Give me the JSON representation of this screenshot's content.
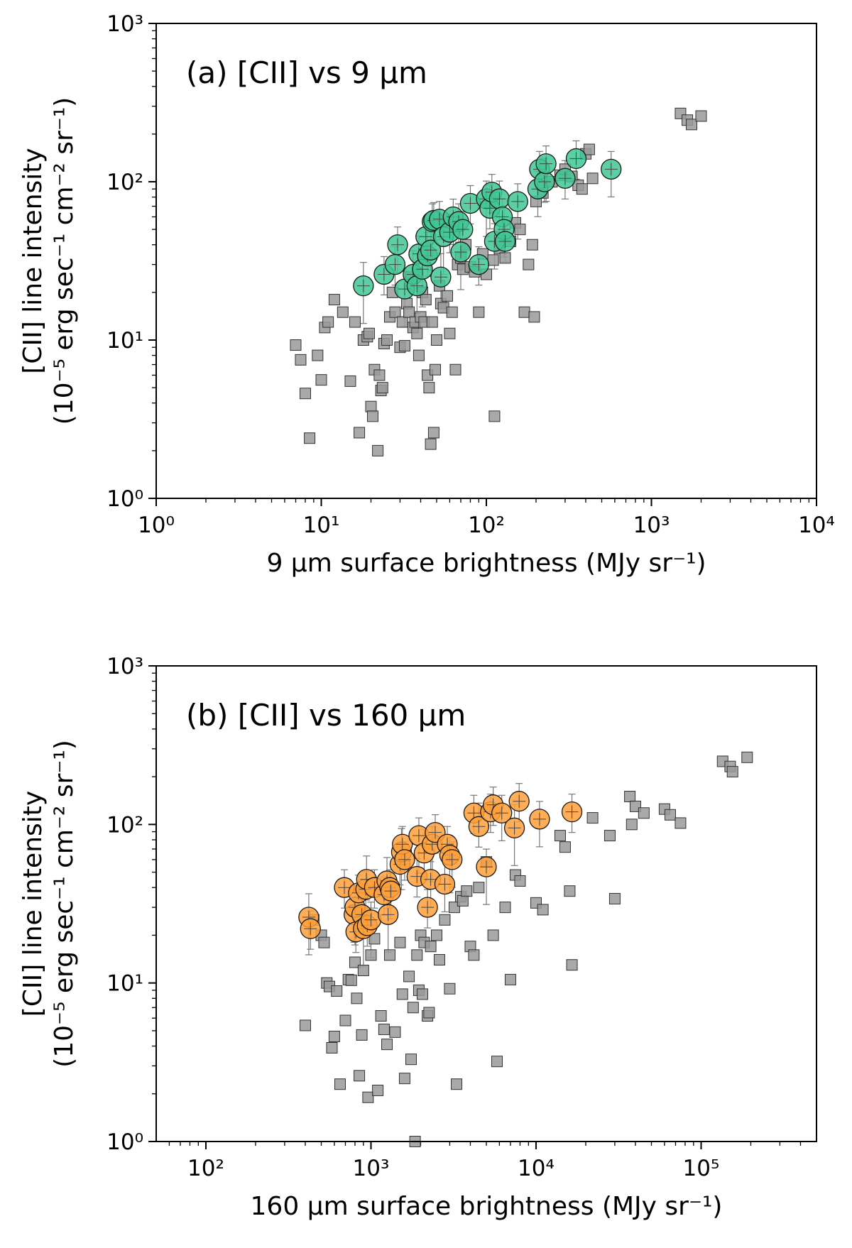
{
  "chart_data": [
    {
      "type": "scatter",
      "title": "(a) [CII] vs 9 μm",
      "xlabel": "9 μm surface brightness (MJy sr⁻¹)",
      "ylabel_line1": "[CII] line intensity",
      "ylabel_line2": "(10⁻⁵ erg sec⁻¹ cm⁻² sr⁻¹)",
      "xscale": "log",
      "yscale": "log",
      "xlim": [
        1,
        10000
      ],
      "ylim": [
        1,
        1000
      ],
      "xticks": [
        {
          "value": 1,
          "label": "10⁰"
        },
        {
          "value": 10,
          "label": "10¹"
        },
        {
          "value": 100,
          "label": "10²"
        },
        {
          "value": 1000,
          "label": "10³"
        },
        {
          "value": 10000,
          "label": "10⁴"
        }
      ],
      "yticks": [
        {
          "value": 1,
          "label": "10⁰"
        },
        {
          "value": 10,
          "label": "10¹"
        },
        {
          "value": 100,
          "label": "10²"
        },
        {
          "value": 1000,
          "label": "10³"
        }
      ],
      "series": [
        {
          "name": "gray squares",
          "marker": "square",
          "color": "#9a9a9a",
          "points": [
            [
              7,
              9.3
            ],
            [
              7.5,
              7.5
            ],
            [
              8,
              4.6
            ],
            [
              8.5,
              2.4
            ],
            [
              9.5,
              8
            ],
            [
              10,
              5.6
            ],
            [
              10.5,
              12
            ],
            [
              11,
              13
            ],
            [
              12,
              18
            ],
            [
              13.5,
              15
            ],
            [
              15,
              5.5
            ],
            [
              16,
              13
            ],
            [
              17,
              2.6
            ],
            [
              18,
              10
            ],
            [
              19,
              10.5
            ],
            [
              19.5,
              11
            ],
            [
              20,
              3.8
            ],
            [
              20.5,
              3.3
            ],
            [
              21,
              6.5
            ],
            [
              22,
              2
            ],
            [
              22.5,
              6
            ],
            [
              23,
              4.8
            ],
            [
              23.5,
              5
            ],
            [
              24,
              9.5
            ],
            [
              25,
              10
            ],
            [
              26,
              14
            ],
            [
              27,
              20
            ],
            [
              28,
              15
            ],
            [
              30,
              9
            ],
            [
              31,
              13
            ],
            [
              32,
              9.2
            ],
            [
              33,
              17
            ],
            [
              34,
              15
            ],
            [
              35,
              25
            ],
            [
              36,
              12
            ],
            [
              37,
              13
            ],
            [
              38,
              11
            ],
            [
              39,
              8
            ],
            [
              40,
              14
            ],
            [
              41,
              20
            ],
            [
              42,
              13
            ],
            [
              43,
              18
            ],
            [
              44,
              6
            ],
            [
              45,
              5
            ],
            [
              46,
              2.2
            ],
            [
              47,
              13
            ],
            [
              48,
              2.6
            ],
            [
              49,
              6.5
            ],
            [
              50,
              10
            ],
            [
              52,
              22
            ],
            [
              53,
              17
            ],
            [
              55,
              16
            ],
            [
              58,
              19
            ],
            [
              60,
              11
            ],
            [
              62,
              15
            ],
            [
              65,
              6.5
            ],
            [
              67,
              30
            ],
            [
              70,
              33
            ],
            [
              72,
              28
            ],
            [
              75,
              40
            ],
            [
              80,
              29
            ],
            [
              85,
              27
            ],
            [
              90,
              15
            ],
            [
              95,
              35
            ],
            [
              100,
              26
            ],
            [
              110,
              32
            ],
            [
              112,
              3.3
            ],
            [
              120,
              38
            ],
            [
              130,
              33
            ],
            [
              140,
              42
            ],
            [
              150,
              55
            ],
            [
              160,
              50
            ],
            [
              170,
              15
            ],
            [
              180,
              30
            ],
            [
              190,
              40
            ],
            [
              195,
              14
            ],
            [
              200,
              75
            ],
            [
              220,
              85
            ],
            [
              250,
              100
            ],
            [
              280,
              110
            ],
            [
              300,
              120
            ],
            [
              330,
              108
            ],
            [
              360,
              95
            ],
            [
              380,
              90
            ],
            [
              400,
              150
            ],
            [
              420,
              160
            ],
            [
              440,
              105
            ],
            [
              1500,
              270
            ],
            [
              1650,
              245
            ],
            [
              1750,
              230
            ],
            [
              2000,
              260
            ]
          ]
        },
        {
          "name": "green circles",
          "marker": "circle",
          "color": "#3fc795",
          "points": [
            [
              18,
              22
            ],
            [
              24,
              26
            ],
            [
              28,
              30
            ],
            [
              29,
              40
            ],
            [
              32,
              21
            ],
            [
              36,
              26
            ],
            [
              38,
              22
            ],
            [
              39,
              35
            ],
            [
              41,
              28
            ],
            [
              43,
              45
            ],
            [
              44,
              34
            ],
            [
              46,
              37
            ],
            [
              47,
              56
            ],
            [
              48,
              57
            ],
            [
              52,
              58
            ],
            [
              53,
              25
            ],
            [
              55,
              45
            ],
            [
              60,
              48
            ],
            [
              63,
              60
            ],
            [
              68,
              56
            ],
            [
              70,
              36
            ],
            [
              72,
              50
            ],
            [
              80,
              73
            ],
            [
              90,
              30
            ],
            [
              100,
              78
            ],
            [
              105,
              68
            ],
            [
              108,
              86
            ],
            [
              112,
              42
            ],
            [
              120,
              78
            ],
            [
              125,
              60
            ],
            [
              128,
              50
            ],
            [
              130,
              42
            ],
            [
              155,
              75
            ],
            [
              205,
              90
            ],
            [
              210,
              120
            ],
            [
              225,
              100
            ],
            [
              230,
              130
            ],
            [
              300,
              105
            ],
            [
              350,
              140
            ],
            [
              570,
              120
            ]
          ]
        }
      ]
    },
    {
      "type": "scatter",
      "title": "(b) [CII] vs 160 μm",
      "xlabel": "160 μm surface brightness (MJy sr⁻¹)",
      "ylabel_line1": "[CII] line intensity",
      "ylabel_line2": "(10⁻⁵ erg sec⁻¹ cm⁻² sr⁻¹)",
      "xscale": "log",
      "yscale": "log",
      "xlim": [
        50,
        500000
      ],
      "ylim": [
        1,
        1000
      ],
      "xticks": [
        {
          "value": 100,
          "label": "10²"
        },
        {
          "value": 1000,
          "label": "10³"
        },
        {
          "value": 10000,
          "label": "10⁴"
        },
        {
          "value": 100000,
          "label": "10⁵"
        }
      ],
      "yticks": [
        {
          "value": 1,
          "label": "10⁰"
        },
        {
          "value": 10,
          "label": "10¹"
        },
        {
          "value": 100,
          "label": "10²"
        },
        {
          "value": 1000,
          "label": "10³"
        }
      ],
      "series": [
        {
          "name": "gray squares",
          "marker": "square",
          "color": "#9a9a9a",
          "points": [
            [
              400,
              5.4
            ],
            [
              450,
              25
            ],
            [
              500,
              20
            ],
            [
              520,
              18
            ],
            [
              540,
              10
            ],
            [
              560,
              9.5
            ],
            [
              580,
              3.9
            ],
            [
              600,
              4.6
            ],
            [
              620,
              8.9
            ],
            [
              650,
              2.3
            ],
            [
              700,
              5.8
            ],
            [
              730,
              10.5
            ],
            [
              760,
              10.4
            ],
            [
              800,
              13.5
            ],
            [
              820,
              8
            ],
            [
              850,
              2.6
            ],
            [
              880,
              4.7
            ],
            [
              900,
              12
            ],
            [
              960,
              1.9
            ],
            [
              1000,
              15
            ],
            [
              1050,
              19
            ],
            [
              1100,
              2.1
            ],
            [
              1150,
              6.2
            ],
            [
              1200,
              5.1
            ],
            [
              1250,
              4.1
            ],
            [
              1300,
              15
            ],
            [
              1400,
              4.9
            ],
            [
              1500,
              18
            ],
            [
              1550,
              8.5
            ],
            [
              1600,
              2.5
            ],
            [
              1700,
              11
            ],
            [
              1750,
              3.3
            ],
            [
              1800,
              7
            ],
            [
              1850,
              1
            ],
            [
              1900,
              15
            ],
            [
              1950,
              9
            ],
            [
              2000,
              20
            ],
            [
              2050,
              8.5
            ],
            [
              2100,
              18
            ],
            [
              2200,
              6.2
            ],
            [
              2250,
              6.5
            ],
            [
              2300,
              17
            ],
            [
              2500,
              20
            ],
            [
              2600,
              14
            ],
            [
              2800,
              25
            ],
            [
              3000,
              9.2
            ],
            [
              3200,
              30
            ],
            [
              3300,
              2.3
            ],
            [
              3500,
              35
            ],
            [
              3600,
              33
            ],
            [
              3800,
              38
            ],
            [
              4000,
              17
            ],
            [
              4200,
              15
            ],
            [
              4500,
              40
            ],
            [
              5000,
              58
            ],
            [
              5500,
              20
            ],
            [
              5800,
              3.2
            ],
            [
              6500,
              30
            ],
            [
              7000,
              10.5
            ],
            [
              7500,
              48
            ],
            [
              8000,
              44
            ],
            [
              10000,
              32
            ],
            [
              11000,
              29
            ],
            [
              14000,
              85
            ],
            [
              15000,
              72
            ],
            [
              16000,
              38
            ],
            [
              16500,
              13
            ],
            [
              22000,
              110
            ],
            [
              28000,
              85
            ],
            [
              30000,
              34
            ],
            [
              37000,
              150
            ],
            [
              38000,
              100
            ],
            [
              40000,
              130
            ],
            [
              45000,
              118
            ],
            [
              60000,
              125
            ],
            [
              65000,
              115
            ],
            [
              75000,
              102
            ],
            [
              135000,
              250
            ],
            [
              150000,
              232
            ],
            [
              155000,
              215
            ],
            [
              190000,
              265
            ]
          ]
        },
        {
          "name": "orange circles",
          "marker": "circle",
          "color": "#ffa03a",
          "points": [
            [
              420,
              26
            ],
            [
              430,
              22
            ],
            [
              690,
              40
            ],
            [
              790,
              27
            ],
            [
              800,
              30
            ],
            [
              810,
              21
            ],
            [
              840,
              37
            ],
            [
              880,
              27
            ],
            [
              900,
              22
            ],
            [
              930,
              39
            ],
            [
              940,
              45
            ],
            [
              950,
              23
            ],
            [
              1000,
              25
            ],
            [
              1050,
              40
            ],
            [
              1200,
              36
            ],
            [
              1250,
              44
            ],
            [
              1270,
              27
            ],
            [
              1300,
              40
            ],
            [
              1320,
              38
            ],
            [
              1500,
              56
            ],
            [
              1530,
              67
            ],
            [
              1550,
              75
            ],
            [
              1600,
              60
            ],
            [
              1900,
              47
            ],
            [
              1950,
              85
            ],
            [
              2100,
              66
            ],
            [
              2200,
              30
            ],
            [
              2300,
              45
            ],
            [
              2350,
              75
            ],
            [
              2450,
              89
            ],
            [
              2800,
              42
            ],
            [
              2900,
              75
            ],
            [
              3000,
              64
            ],
            [
              3100,
              60
            ],
            [
              4200,
              118
            ],
            [
              4500,
              97
            ],
            [
              5000,
              54
            ],
            [
              5300,
              120
            ],
            [
              5500,
              133
            ],
            [
              6200,
              118
            ],
            [
              7400,
              95
            ],
            [
              7900,
              140
            ],
            [
              10500,
              108
            ],
            [
              16500,
              120
            ]
          ]
        }
      ]
    }
  ]
}
